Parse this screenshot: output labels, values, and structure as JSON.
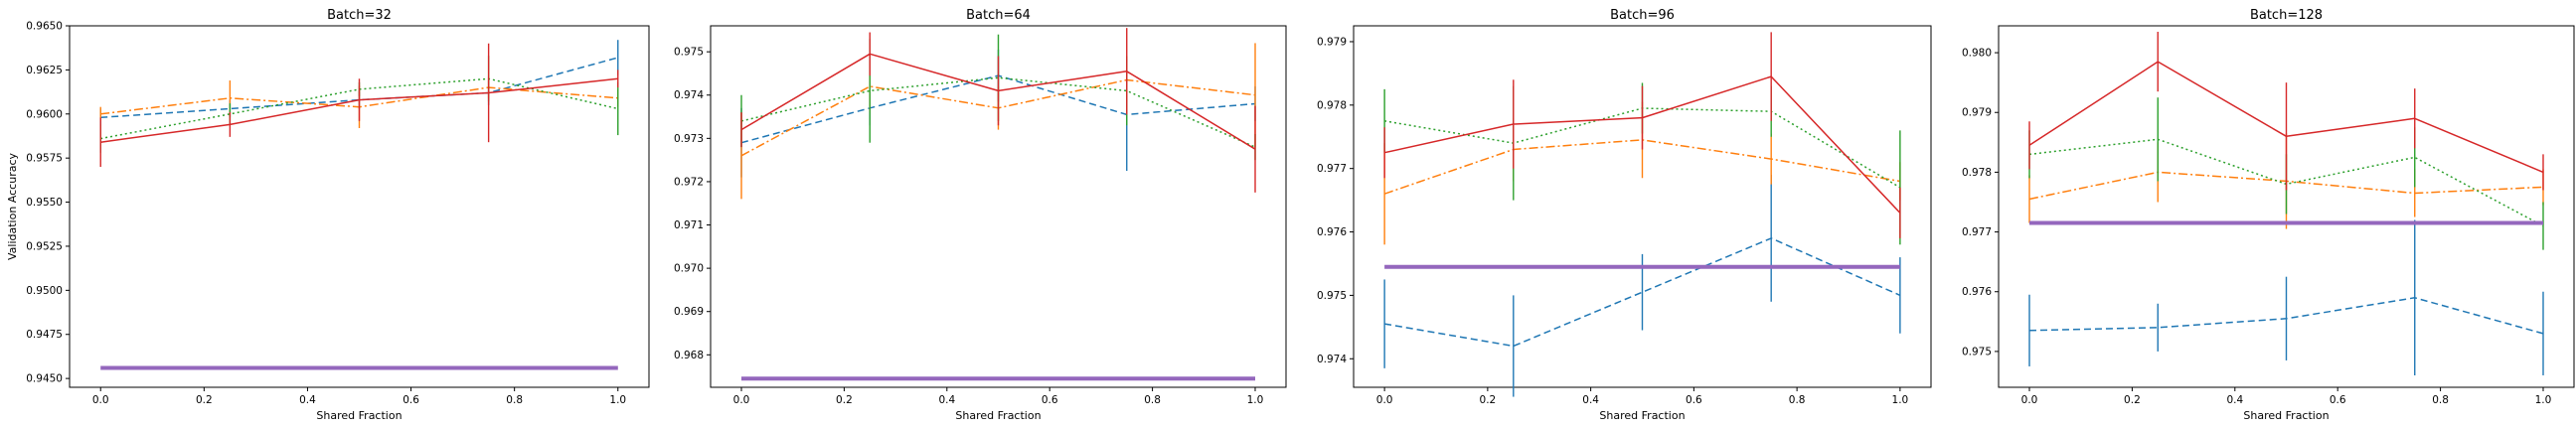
{
  "colors": {
    "blue": "#1f77b4",
    "orange": "#ff7f0e",
    "green": "#2ca02c",
    "red": "#d62728",
    "purple": "#9467bd"
  },
  "chart_data": [
    {
      "type": "line",
      "title": "Batch=32",
      "xlabel": "Shared Fraction",
      "ylabel": "Validation Accuracy",
      "xlim": [
        -0.06,
        1.06
      ],
      "ylim": [
        0.9445,
        0.965
      ],
      "xticks": [
        "0.0",
        "0.2",
        "0.4",
        "0.6",
        "0.8",
        "1.0"
      ],
      "xtick_values": [
        0.0,
        0.2,
        0.4,
        0.6,
        0.8,
        1.0
      ],
      "yticks": [
        "0.9450",
        "0.9475",
        "0.9500",
        "0.9525",
        "0.9550",
        "0.9575",
        "0.9600",
        "0.9625",
        "0.9650"
      ],
      "ytick_values": [
        0.945,
        0.9475,
        0.95,
        0.9525,
        0.955,
        0.9575,
        0.96,
        0.9625,
        0.965
      ],
      "x": [
        0.0,
        0.25,
        0.5,
        0.75,
        1.0
      ],
      "series": [
        {
          "style": "dashed",
          "color": "blue",
          "values": [
            0.9598,
            0.9603,
            0.9608,
            0.9612,
            0.9632
          ],
          "err": [
            0.0005,
            0.0005,
            0.0005,
            0.0007,
            0.001
          ]
        },
        {
          "style": "dashdot",
          "color": "orange",
          "values": [
            0.96,
            0.9609,
            0.9604,
            0.9615,
            0.9609
          ],
          "err": [
            0.0004,
            0.001,
            0.0012,
            0.0006,
            0.0005
          ]
        },
        {
          "style": "dotted",
          "color": "green",
          "values": [
            0.9586,
            0.96,
            0.9614,
            0.962,
            0.9603
          ],
          "err": [
            0.0008,
            0.0006,
            0.0004,
            0.0013,
            0.0015
          ]
        },
        {
          "style": "solid",
          "color": "red",
          "values": [
            0.9584,
            0.9594,
            0.9608,
            0.9612,
            0.962
          ],
          "err": [
            0.0014,
            0.0007,
            0.0012,
            0.0028,
            0.0005
          ]
        },
        {
          "style": "baseline",
          "color": "purple",
          "values": [
            0.9456,
            0.9456,
            0.9456,
            0.9456,
            0.9456
          ]
        }
      ]
    },
    {
      "type": "line",
      "title": "Batch=64",
      "xlabel": "Shared Fraction",
      "ylabel": "",
      "xlim": [
        -0.06,
        1.06
      ],
      "ylim": [
        0.96725,
        0.9756
      ],
      "xticks": [
        "0.0",
        "0.2",
        "0.4",
        "0.6",
        "0.8",
        "1.0"
      ],
      "xtick_values": [
        0.0,
        0.2,
        0.4,
        0.6,
        0.8,
        1.0
      ],
      "yticks": [
        "0.968",
        "0.969",
        "0.970",
        "0.971",
        "0.972",
        "0.973",
        "0.974",
        "0.975"
      ],
      "ytick_values": [
        0.968,
        0.969,
        0.97,
        0.971,
        0.972,
        0.973,
        0.974,
        0.975
      ],
      "x": [
        0.0,
        0.25,
        0.5,
        0.75,
        1.0
      ],
      "series": [
        {
          "style": "dashed",
          "color": "blue",
          "values": [
            0.9729,
            0.9737,
            0.97445,
            0.97355,
            0.9738
          ],
          "err": [
            0.0008,
            0.0004,
            0.0006,
            0.0013,
            0.0004
          ]
        },
        {
          "style": "dashdot",
          "color": "orange",
          "values": [
            0.9726,
            0.9742,
            0.9737,
            0.97435,
            0.974
          ],
          "err": [
            0.001,
            0.0006,
            0.0005,
            0.0004,
            0.0012
          ]
        },
        {
          "style": "dotted",
          "color": "green",
          "values": [
            0.9734,
            0.9741,
            0.9744,
            0.9741,
            0.9728
          ],
          "err": [
            0.0006,
            0.0012,
            0.001,
            0.0008,
            0.0003
          ]
        },
        {
          "style": "solid",
          "color": "red",
          "values": [
            0.9732,
            0.97495,
            0.9741,
            0.97455,
            0.97275
          ],
          "err": [
            0.0004,
            0.0005,
            0.0008,
            0.001,
            0.001
          ]
        },
        {
          "style": "baseline",
          "color": "purple",
          "values": [
            0.96745,
            0.96745,
            0.96745,
            0.96745,
            0.96745
          ]
        }
      ]
    },
    {
      "type": "line",
      "title": "Batch=96",
      "xlabel": "Shared Fraction",
      "ylabel": "",
      "xlim": [
        -0.06,
        1.06
      ],
      "ylim": [
        0.97355,
        0.97925
      ],
      "xticks": [
        "0.0",
        "0.2",
        "0.4",
        "0.6",
        "0.8",
        "1.0"
      ],
      "xtick_values": [
        0.0,
        0.2,
        0.4,
        0.6,
        0.8,
        1.0
      ],
      "yticks": [
        "0.974",
        "0.975",
        "0.976",
        "0.977",
        "0.978",
        "0.979"
      ],
      "ytick_values": [
        0.974,
        0.975,
        0.976,
        0.977,
        0.978,
        0.979
      ],
      "x": [
        0.0,
        0.25,
        0.5,
        0.75,
        1.0
      ],
      "series": [
        {
          "style": "dashed",
          "color": "blue",
          "values": [
            0.97455,
            0.9742,
            0.97505,
            0.9759,
            0.975
          ],
          "err": [
            0.0007,
            0.0008,
            0.0006,
            0.001,
            0.0006
          ]
        },
        {
          "style": "dashdot",
          "color": "orange",
          "values": [
            0.9766,
            0.9773,
            0.97745,
            0.97715,
            0.9768
          ],
          "err": [
            0.0008,
            0.0005,
            0.0006,
            0.0004,
            0.0003
          ]
        },
        {
          "style": "dotted",
          "color": "green",
          "values": [
            0.97775,
            0.9774,
            0.97795,
            0.9779,
            0.9767
          ],
          "err": [
            0.0005,
            0.0009,
            0.0004,
            0.0004,
            0.0009
          ]
        },
        {
          "style": "solid",
          "color": "red",
          "values": [
            0.97725,
            0.9777,
            0.9778,
            0.97845,
            0.9763
          ],
          "err": [
            0.0004,
            0.0007,
            0.0005,
            0.0007,
            0.0004
          ]
        },
        {
          "style": "baseline",
          "color": "purple",
          "values": [
            0.97545,
            0.97545,
            0.97545,
            0.97545,
            0.97545
          ]
        }
      ]
    },
    {
      "type": "line",
      "title": "Batch=128",
      "xlabel": "Shared Fraction",
      "ylabel": "",
      "xlim": [
        -0.06,
        1.06
      ],
      "ylim": [
        0.9744,
        0.98045
      ],
      "xticks": [
        "0.0",
        "0.2",
        "0.4",
        "0.6",
        "0.8",
        "1.0"
      ],
      "xtick_values": [
        0.0,
        0.2,
        0.4,
        0.6,
        0.8,
        1.0
      ],
      "yticks": [
        "0.975",
        "0.976",
        "0.977",
        "0.978",
        "0.979",
        "0.980"
      ],
      "ytick_values": [
        0.975,
        0.976,
        0.977,
        0.978,
        0.979,
        0.98
      ],
      "x": [
        0.0,
        0.25,
        0.5,
        0.75,
        1.0
      ],
      "series": [
        {
          "style": "dashed",
          "color": "blue",
          "values": [
            0.97535,
            0.9754,
            0.97555,
            0.9759,
            0.9753
          ],
          "err": [
            0.0006,
            0.0004,
            0.0007,
            0.0013,
            0.0007
          ]
        },
        {
          "style": "dashdot",
          "color": "orange",
          "values": [
            0.97755,
            0.978,
            0.97785,
            0.97765,
            0.97775
          ],
          "err": [
            0.0004,
            0.0005,
            0.0008,
            0.0004,
            0.0003
          ]
        },
        {
          "style": "dotted",
          "color": "green",
          "values": [
            0.9783,
            0.97855,
            0.9778,
            0.97825,
            0.9771
          ],
          "err": [
            0.0004,
            0.0007,
            0.0005,
            0.0005,
            0.0004
          ]
        },
        {
          "style": "solid",
          "color": "red",
          "values": [
            0.97845,
            0.97985,
            0.9786,
            0.9789,
            0.978
          ],
          "err": [
            0.0004,
            0.0005,
            0.0009,
            0.0005,
            0.0003
          ]
        },
        {
          "style": "baseline",
          "color": "purple",
          "values": [
            0.97715,
            0.97715,
            0.97715,
            0.97715,
            0.97715
          ]
        }
      ]
    }
  ]
}
